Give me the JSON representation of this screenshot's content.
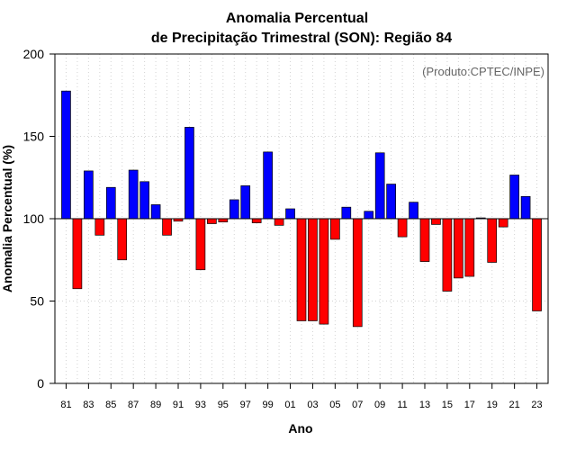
{
  "chart_data": {
    "type": "bar",
    "title_line1": "Anomalia Percentual",
    "title_line2": "de Precipitação Trimestral (SON): Região 84",
    "xlabel": "Ano",
    "ylabel": "Anomalia Percentual (%)",
    "credit": "(Produto:CPTEC/INPE)",
    "ylim": [
      0,
      200
    ],
    "yticks": [
      0,
      50,
      100,
      150,
      200
    ],
    "baseline": 100,
    "xtick_labels": [
      "81",
      "83",
      "85",
      "87",
      "89",
      "91",
      "93",
      "95",
      "97",
      "99",
      "01",
      "03",
      "05",
      "07",
      "09",
      "11",
      "13",
      "15",
      "17",
      "19",
      "21",
      "23"
    ],
    "categories": [
      "81",
      "82",
      "83",
      "84",
      "85",
      "86",
      "87",
      "88",
      "89",
      "90",
      "91",
      "92",
      "93",
      "94",
      "95",
      "96",
      "97",
      "98",
      "99",
      "00",
      "01",
      "02",
      "03",
      "04",
      "05",
      "06",
      "07",
      "08",
      "09",
      "10",
      "11",
      "12",
      "13",
      "14",
      "15",
      "16",
      "17",
      "18",
      "19",
      "20",
      "21",
      "22",
      "23"
    ],
    "values": [
      177.5,
      57.5,
      129,
      90,
      119,
      75,
      129.5,
      122.5,
      108.5,
      90,
      98.5,
      155.5,
      69,
      97,
      98,
      111.5,
      120,
      97.5,
      140.5,
      96,
      106,
      38,
      38,
      36,
      87.5,
      107,
      34.5,
      104.5,
      140,
      121,
      89,
      110,
      74,
      96.5,
      56,
      64,
      65,
      100.5,
      73.5,
      95,
      126.5,
      113.5,
      44
    ],
    "above_color": "#0000ff",
    "below_color": "#ff0000"
  }
}
